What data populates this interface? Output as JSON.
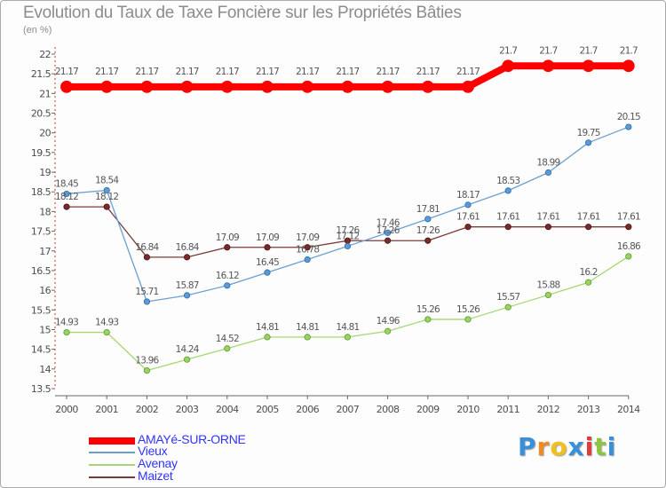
{
  "title": "Evolution du Taux de Taxe Foncière sur les Propriétés Bâties",
  "unit": "(en %)",
  "logo": {
    "letters": [
      "P",
      "r",
      "o",
      "x",
      "i",
      "t",
      "i"
    ],
    "colors": [
      "#3a8fd9",
      "#f08a24",
      "#f0c020",
      "#3a8fd9",
      "#e03a3a",
      "#8cc640",
      "#3a8fd9"
    ]
  },
  "chart_data": {
    "type": "line",
    "title": "Evolution du Taux de Taxe Foncière sur les Propriétés Bâties",
    "ylabel": "(en %)",
    "ylim": [
      13.5,
      22
    ],
    "yticks": [
      "13.5",
      "14",
      "14.5",
      "15",
      "15.5",
      "16",
      "16.5",
      "17",
      "17.5",
      "18",
      "18.5",
      "19",
      "19.5",
      "20",
      "20.5",
      "21",
      "21.5",
      "22"
    ],
    "categories": [
      "2000",
      "2001",
      "2002",
      "2003",
      "2004",
      "2005",
      "2006",
      "2007",
      "2008",
      "2009",
      "2010",
      "2011",
      "2012",
      "2013",
      "2014"
    ],
    "grid": false,
    "legend": "bottom-left",
    "series": [
      {
        "name": "AMAYé-SUR-ORNE",
        "color": "#ff0000",
        "labelColor": "#3333ff",
        "width": 8,
        "marker": "#ff0000",
        "markerStroke": "#ff0000",
        "values": [
          21.17,
          21.17,
          21.17,
          21.17,
          21.17,
          21.17,
          21.17,
          21.17,
          21.17,
          21.17,
          21.17,
          21.7,
          21.7,
          21.7,
          21.7
        ],
        "labels": [
          "21.17",
          "21.17",
          "21.17",
          "21.17",
          "21.17",
          "21.17",
          "21.17",
          "21.17",
          "21.17",
          "21.17",
          "21.17",
          "21.7",
          "21.7",
          "21.7",
          "21.7"
        ]
      },
      {
        "name": "Vieux",
        "color": "#6b9fd0",
        "labelColor": "#3333ff",
        "width": 1.3,
        "marker": "#5b9bd5",
        "markerStroke": "#2e6aa8",
        "values": [
          18.45,
          18.54,
          15.71,
          15.87,
          16.12,
          16.45,
          16.78,
          17.12,
          17.46,
          17.81,
          18.17,
          18.53,
          18.99,
          19.75,
          20.15
        ],
        "labels": [
          "18.45",
          "18.54",
          "15.71",
          "15.87",
          "16.12",
          "16.45",
          "16.78",
          "17.12",
          "17.46",
          "17.81",
          "18.17",
          "18.53",
          "18.99",
          "19.75",
          "20.15"
        ]
      },
      {
        "name": "Avenay",
        "color": "#a3d86f",
        "labelColor": "#3333ff",
        "width": 1.3,
        "marker": "#9bd265",
        "markerStroke": "#5a9a2a",
        "values": [
          14.93,
          14.93,
          13.96,
          14.24,
          14.52,
          14.81,
          14.81,
          14.81,
          14.96,
          15.26,
          15.26,
          15.57,
          15.88,
          16.2,
          16.86
        ],
        "labels": [
          "14.93",
          "14.93",
          "13.96",
          "14.24",
          "14.52",
          "14.81",
          "14.81",
          "14.81",
          "14.96",
          "15.26",
          "15.26",
          "15.57",
          "15.88",
          "16.2",
          "16.86"
        ]
      },
      {
        "name": "Maizet",
        "color": "#7a3a3a",
        "labelColor": "#3333ff",
        "width": 1.3,
        "marker": "#7a2a2a",
        "markerStroke": "#4a1414",
        "values": [
          18.12,
          18.12,
          16.84,
          16.84,
          17.09,
          17.09,
          17.09,
          17.26,
          17.26,
          17.26,
          17.61,
          17.61,
          17.61,
          17.61,
          17.61
        ],
        "labels": [
          "18.12",
          "18.12",
          "16.84",
          "16.84",
          "17.09",
          "17.09",
          "17.09",
          "17.26",
          "17.26",
          "17.26",
          "17.61",
          "17.61",
          "17.61",
          "17.61",
          "17.61"
        ]
      }
    ]
  }
}
